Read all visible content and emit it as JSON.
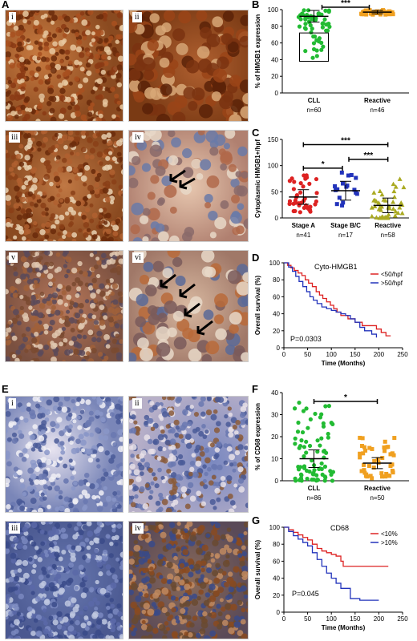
{
  "panel_labels": {
    "A": "A",
    "B": "B",
    "C": "C",
    "D": "D",
    "E": "E",
    "F": "F",
    "G": "G"
  },
  "micro_labels": {
    "a": [
      "i",
      "ii",
      "iii",
      "iv",
      "v",
      "vi"
    ],
    "e": [
      "i",
      "ii",
      "iii",
      "iv"
    ]
  },
  "colors": {
    "green": "#22bb33",
    "orange": "#f0a020",
    "red": "#dd2222",
    "blue": "#2233bb",
    "olive": "#aaaa22",
    "brown": "#8a4a20",
    "hema": "#6a78b0"
  },
  "chart_data": [
    {
      "id": "B",
      "type": "scatter",
      "ylabel": "% of HMGB1 expression",
      "ylim": [
        0,
        100
      ],
      "yticks": [
        0,
        20,
        40,
        60,
        80,
        100
      ],
      "categories": [
        "CLL",
        "Reactive"
      ],
      "counts": [
        "n=60",
        "n=46"
      ],
      "significance": "***"
    },
    {
      "id": "C",
      "type": "scatter",
      "ylabel": "Cytoplasmic HMGB1+/hpf",
      "ylim": [
        0,
        150
      ],
      "yticks": [
        0,
        50,
        100,
        150
      ],
      "categories": [
        "Stage A",
        "Stage B/C",
        "Reactive"
      ],
      "counts": [
        "n=41",
        "n=17",
        "n=58"
      ],
      "significance": [
        "*",
        "***",
        "***"
      ]
    },
    {
      "id": "D",
      "type": "line",
      "title": "Cyto-HMGB1",
      "ylabel": "Overall survival (%)",
      "xlabel": "Time (Months)",
      "xlim": [
        0,
        250
      ],
      "ylim": [
        0,
        100
      ],
      "xticks": [
        0,
        50,
        100,
        150,
        200,
        250
      ],
      "yticks": [
        0,
        20,
        40,
        60,
        80,
        100
      ],
      "legend": [
        "<50/hpf",
        ">50/hpf"
      ],
      "pvalue": "P=0.0303",
      "series": [
        {
          "name": "<50/hpf",
          "x": [
            0,
            8,
            15,
            22,
            30,
            38,
            45,
            52,
            60,
            68,
            75,
            82,
            90,
            98,
            105,
            112,
            120,
            135,
            150,
            165,
            180,
            195,
            205,
            215,
            225
          ],
          "y": [
            100,
            97,
            94,
            91,
            88,
            85,
            80,
            76,
            72,
            66,
            62,
            58,
            54,
            50,
            46,
            42,
            38,
            34,
            30,
            26,
            26,
            22,
            18,
            14,
            14
          ]
        },
        {
          "name": ">50/hpf",
          "x": [
            0,
            10,
            18,
            25,
            32,
            40,
            48,
            55,
            62,
            70,
            80,
            90,
            100,
            110,
            120,
            130,
            140,
            150,
            160,
            170,
            185,
            195
          ],
          "y": [
            100,
            95,
            90,
            84,
            78,
            72,
            66,
            60,
            56,
            52,
            48,
            46,
            44,
            42,
            40,
            38,
            34,
            30,
            24,
            20,
            16,
            12
          ]
        }
      ]
    },
    {
      "id": "F",
      "type": "scatter",
      "ylabel": "% of CD68 expression",
      "ylim": [
        0,
        40
      ],
      "yticks": [
        0,
        10,
        20,
        30,
        40
      ],
      "categories": [
        "CLL",
        "Reactive"
      ],
      "counts": [
        "n=86",
        "n=50"
      ],
      "significance": "*"
    },
    {
      "id": "G",
      "type": "line",
      "title": "CD68",
      "ylabel": "Overall survival (%)",
      "xlabel": "Time (Months)",
      "xlim": [
        0,
        250
      ],
      "ylim": [
        0,
        100
      ],
      "xticks": [
        0,
        50,
        100,
        150,
        200,
        250
      ],
      "yticks": [
        0,
        20,
        40,
        60,
        80,
        100
      ],
      "legend": [
        "<10%",
        ">10%"
      ],
      "pvalue": "P=0.045",
      "series": [
        {
          "name": "<10%",
          "x": [
            0,
            10,
            20,
            30,
            40,
            50,
            60,
            70,
            80,
            90,
            100,
            110,
            120,
            125,
            150,
            180,
            220
          ],
          "y": [
            100,
            97,
            94,
            91,
            88,
            85,
            80,
            75,
            72,
            70,
            68,
            66,
            60,
            54,
            54,
            54,
            54
          ]
        },
        {
          "name": ">10%",
          "x": [
            0,
            10,
            20,
            30,
            40,
            50,
            60,
            70,
            80,
            90,
            100,
            110,
            120,
            140,
            160,
            200
          ],
          "y": [
            100,
            95,
            90,
            86,
            82,
            78,
            70,
            62,
            54,
            46,
            40,
            34,
            28,
            16,
            14,
            14
          ]
        }
      ]
    }
  ]
}
